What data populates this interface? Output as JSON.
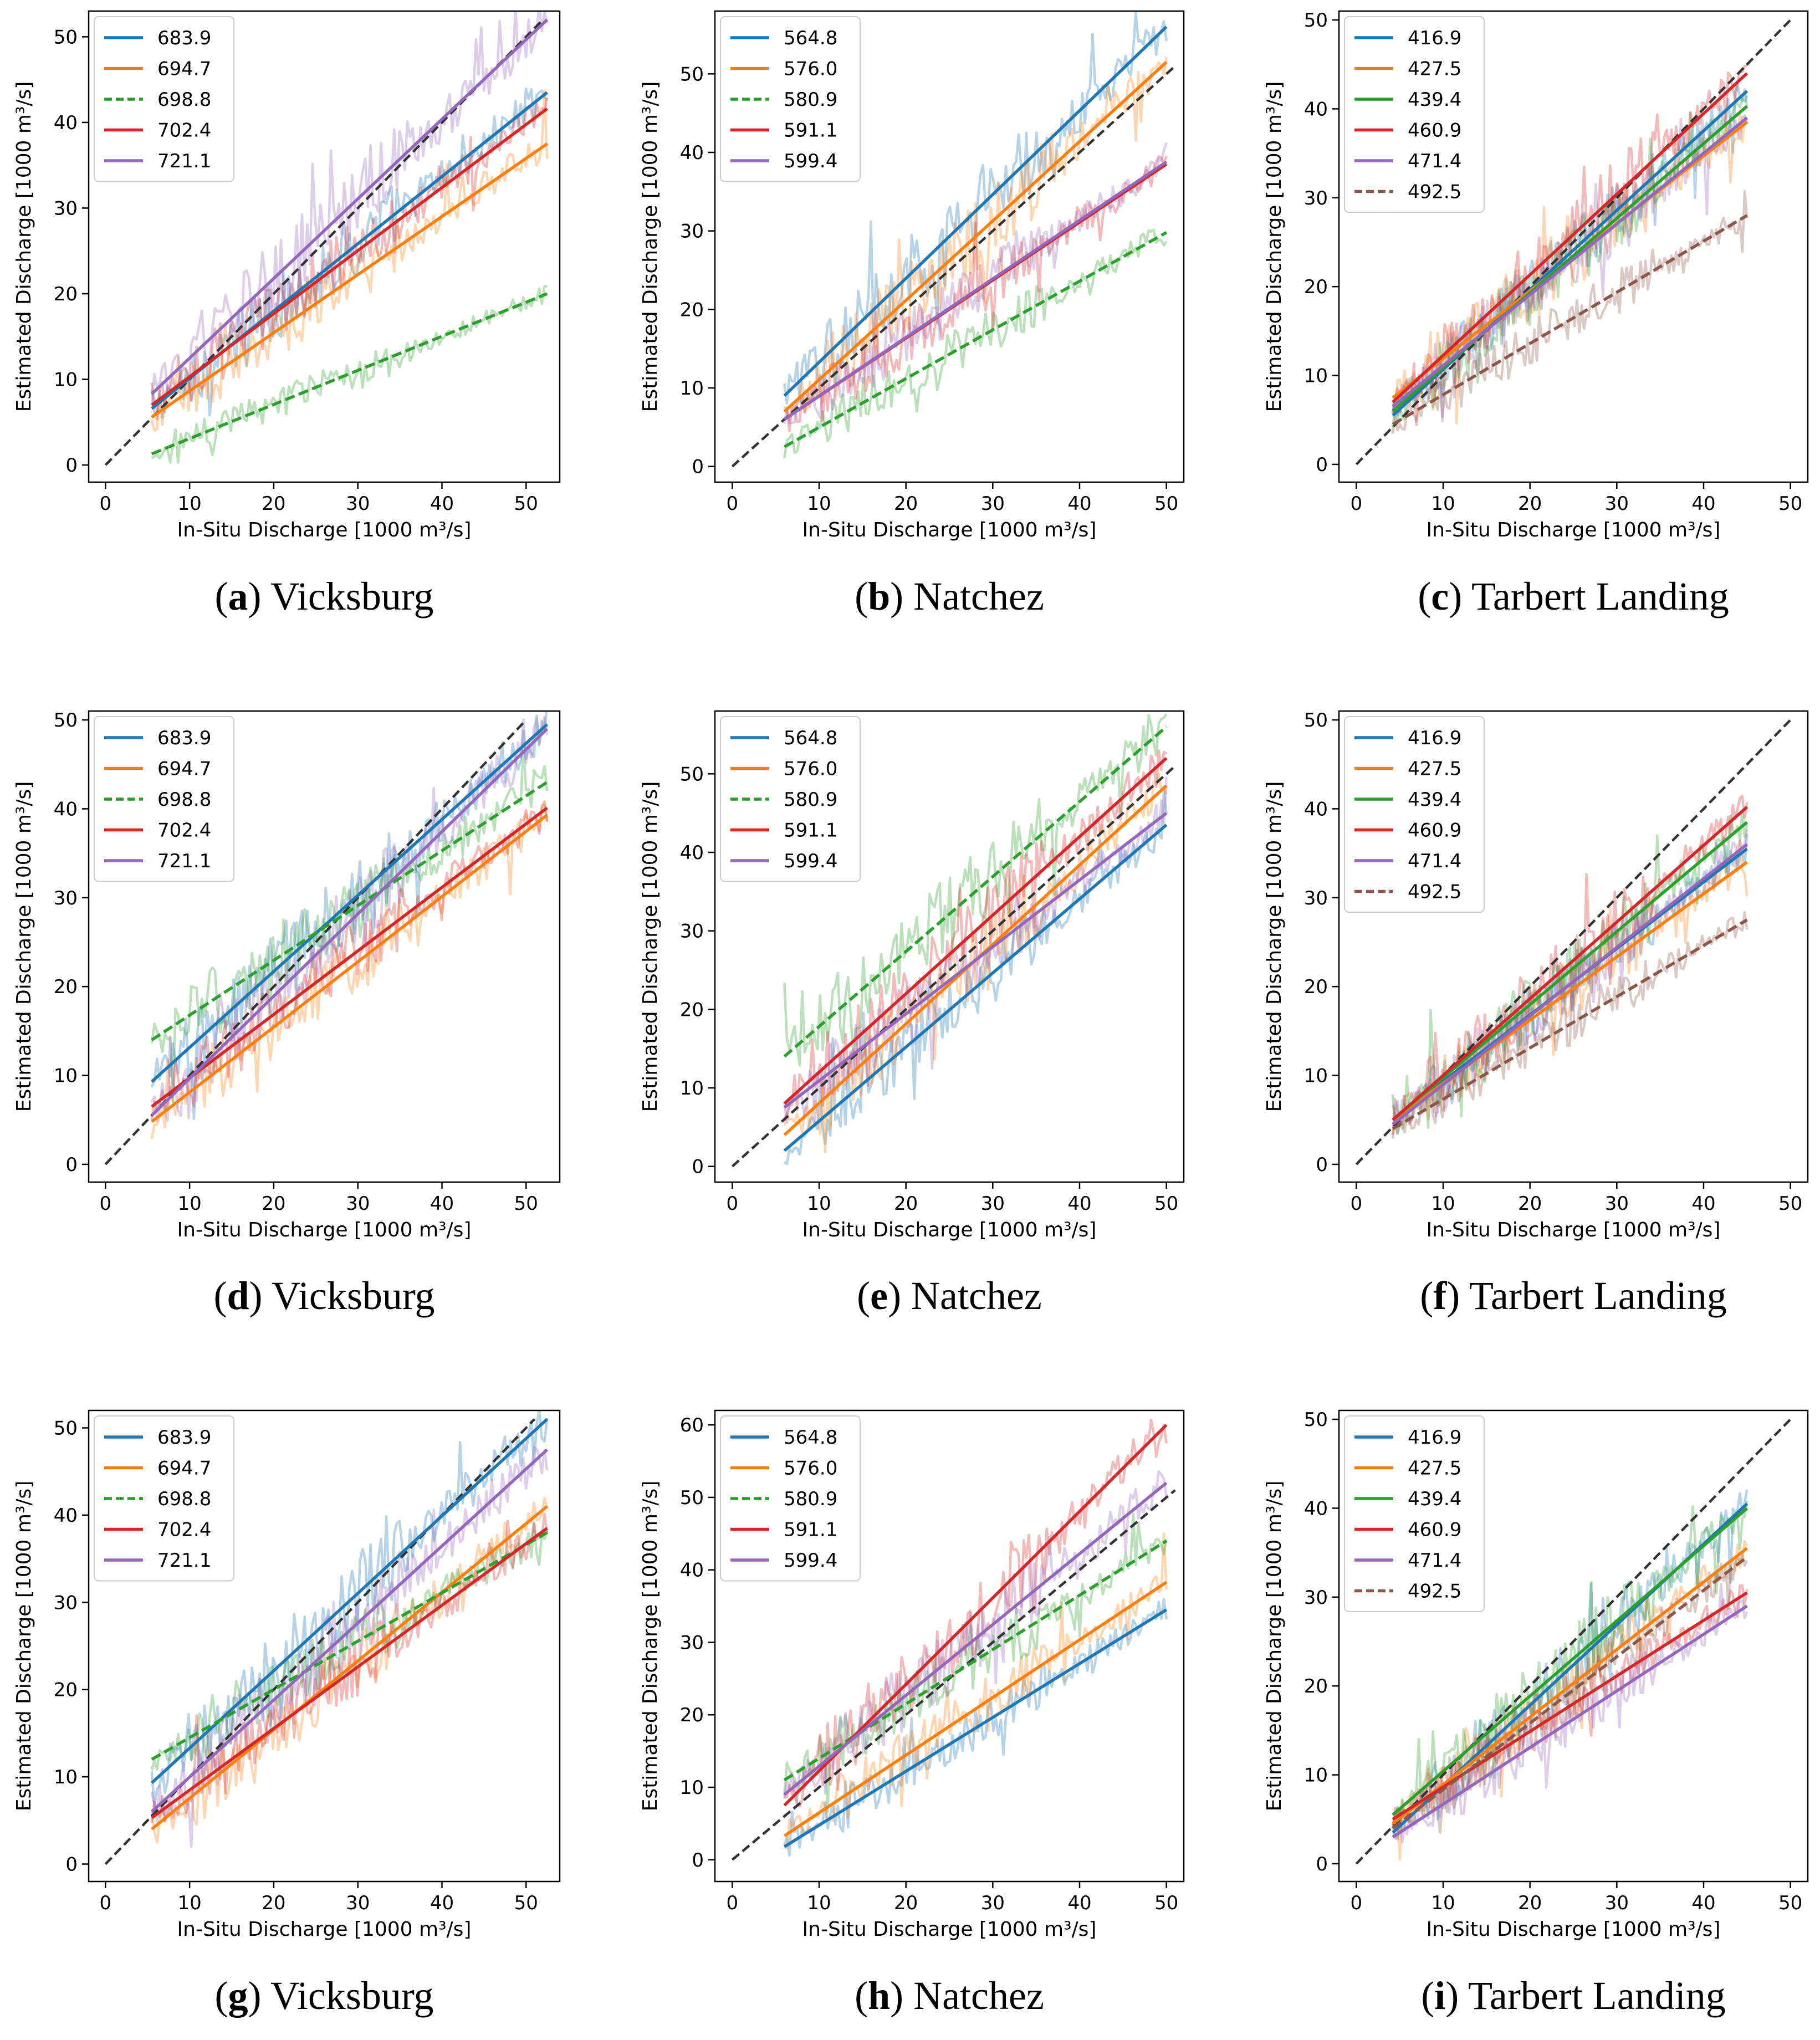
{
  "figure": {
    "xlabel": "In-Situ Discharge [1000 m³/s]",
    "ylabel": "Estimated Discharge [1000 m³/s]"
  },
  "colors": {
    "c0": "#1f77b4",
    "c1": "#ff7f0e",
    "c2": "#2ca02c",
    "c3": "#d62728",
    "c4": "#9467bd",
    "c5": "#8c564b",
    "identity": "#333333"
  },
  "chart_data": [
    {
      "panel": "a",
      "caption_letter": "a",
      "caption_station": "Vicksburg",
      "type": "line",
      "xlabel": "In-Situ Discharge [1000 m³/s]",
      "ylabel": "Estimated Discharge [1000 m³/s]",
      "xlim": [
        -2,
        54
      ],
      "ylim": [
        -2,
        53
      ],
      "xticks": [
        0,
        10,
        20,
        30,
        40,
        50
      ],
      "yticks": [
        0,
        10,
        20,
        30,
        40,
        50
      ],
      "xrange": [
        5.5,
        52.5
      ],
      "series": [
        {
          "name": "683.9",
          "color": "c0",
          "dashed": false,
          "fit": [
            [
              5.5,
              6.6
            ],
            [
              52.5,
              43.5
            ]
          ]
        },
        {
          "name": "694.7",
          "color": "c1",
          "dashed": false,
          "fit": [
            [
              5.5,
              5.6
            ],
            [
              52.5,
              37.5
            ]
          ]
        },
        {
          "name": "698.8",
          "color": "c2",
          "dashed": true,
          "fit": [
            [
              5.5,
              1.3
            ],
            [
              52.5,
              20.0
            ]
          ]
        },
        {
          "name": "702.4",
          "color": "c3",
          "dashed": false,
          "fit": [
            [
              5.5,
              7.0
            ],
            [
              52.5,
              41.6
            ]
          ]
        },
        {
          "name": "721.1",
          "color": "c4",
          "dashed": false,
          "fit": [
            [
              5.5,
              8.3
            ],
            [
              52.5,
              52.0
            ]
          ]
        }
      ]
    },
    {
      "panel": "b",
      "caption_letter": "b",
      "caption_station": "Natchez",
      "type": "line",
      "xlabel": "In-Situ Discharge [1000 m³/s]",
      "ylabel": "Estimated Discharge [1000 m³/s]",
      "xlim": [
        -2,
        52
      ],
      "ylim": [
        -2,
        58
      ],
      "xticks": [
        0,
        10,
        20,
        30,
        40,
        50
      ],
      "yticks": [
        0,
        10,
        20,
        30,
        40,
        50
      ],
      "xrange": [
        6,
        50
      ],
      "series": [
        {
          "name": "564.8",
          "color": "c0",
          "dashed": false,
          "fit": [
            [
              6,
              9.0
            ],
            [
              50,
              56.0
            ]
          ]
        },
        {
          "name": "576.0",
          "color": "c1",
          "dashed": false,
          "fit": [
            [
              6,
              7.0
            ],
            [
              50,
              51.5
            ]
          ]
        },
        {
          "name": "580.9",
          "color": "c2",
          "dashed": true,
          "fit": [
            [
              6,
              2.5
            ],
            [
              50,
              29.8
            ]
          ]
        },
        {
          "name": "591.1",
          "color": "c3",
          "dashed": false,
          "fit": [
            [
              6,
              6.0
            ],
            [
              50,
              38.5
            ]
          ]
        },
        {
          "name": "599.4",
          "color": "c4",
          "dashed": false,
          "fit": [
            [
              6,
              6.0
            ],
            [
              50,
              38.8
            ]
          ]
        }
      ]
    },
    {
      "panel": "c",
      "caption_letter": "c",
      "caption_station": "Tarbert Landing",
      "type": "line",
      "xlabel": "In-Situ Discharge [1000 m³/s]",
      "ylabel": "Estimated Discharge [1000 m³/s]",
      "xlim": [
        -2,
        52
      ],
      "ylim": [
        -2,
        51
      ],
      "xticks": [
        0,
        10,
        20,
        30,
        40,
        50
      ],
      "yticks": [
        0,
        10,
        20,
        30,
        40,
        50
      ],
      "xrange": [
        4.2,
        45
      ],
      "series": [
        {
          "name": "416.9",
          "color": "c0",
          "dashed": false,
          "fit": [
            [
              4.2,
              5.5
            ],
            [
              45,
              42.0
            ]
          ]
        },
        {
          "name": "427.5",
          "color": "c1",
          "dashed": false,
          "fit": [
            [
              4.2,
              7.5
            ],
            [
              45,
              38.5
            ]
          ]
        },
        {
          "name": "439.4",
          "color": "c2",
          "dashed": false,
          "fit": [
            [
              4.2,
              6.0
            ],
            [
              45,
              40.3
            ]
          ]
        },
        {
          "name": "460.9",
          "color": "c3",
          "dashed": false,
          "fit": [
            [
              4.2,
              7.0
            ],
            [
              45,
              44.0
            ]
          ]
        },
        {
          "name": "471.4",
          "color": "c4",
          "dashed": false,
          "fit": [
            [
              4.2,
              6.5
            ],
            [
              45,
              39.0
            ]
          ]
        },
        {
          "name": "492.5",
          "color": "c5",
          "dashed": true,
          "fit": [
            [
              4.2,
              4.5
            ],
            [
              45,
              28.0
            ]
          ]
        }
      ]
    },
    {
      "panel": "d",
      "caption_letter": "d",
      "caption_station": "Vicksburg",
      "type": "line",
      "xlabel": "In-Situ Discharge [1000 m³/s]",
      "ylabel": "Estimated Discharge [1000 m³/s]",
      "xlim": [
        -2,
        54
      ],
      "ylim": [
        -2,
        51
      ],
      "xticks": [
        0,
        10,
        20,
        30,
        40,
        50
      ],
      "yticks": [
        0,
        10,
        20,
        30,
        40,
        50
      ],
      "xrange": [
        5.5,
        52.5
      ],
      "series": [
        {
          "name": "683.9",
          "color": "c0",
          "dashed": false,
          "fit": [
            [
              5.5,
              9.3
            ],
            [
              52.5,
              49.5
            ]
          ]
        },
        {
          "name": "694.7",
          "color": "c1",
          "dashed": false,
          "fit": [
            [
              5.5,
              4.8
            ],
            [
              52.5,
              39.3
            ]
          ]
        },
        {
          "name": "698.8",
          "color": "c2",
          "dashed": true,
          "fit": [
            [
              5.5,
              14.0
            ],
            [
              52.5,
              43.0
            ]
          ]
        },
        {
          "name": "702.4",
          "color": "c3",
          "dashed": false,
          "fit": [
            [
              5.5,
              6.5
            ],
            [
              52.5,
              40.1
            ]
          ]
        },
        {
          "name": "721.1",
          "color": "c4",
          "dashed": false,
          "fit": [
            [
              5.5,
              5.5
            ],
            [
              52.5,
              49.0
            ]
          ]
        }
      ]
    },
    {
      "panel": "e",
      "caption_letter": "e",
      "caption_station": "Natchez",
      "type": "line",
      "xlabel": "In-Situ Discharge [1000 m³/s]",
      "ylabel": "Estimated Discharge [1000 m³/s]",
      "xlim": [
        -2,
        52
      ],
      "ylim": [
        -2,
        58
      ],
      "xticks": [
        0,
        10,
        20,
        30,
        40,
        50
      ],
      "yticks": [
        0,
        10,
        20,
        30,
        40,
        50
      ],
      "xrange": [
        6,
        50
      ],
      "series": [
        {
          "name": "564.8",
          "color": "c0",
          "dashed": false,
          "fit": [
            [
              6,
              2.0
            ],
            [
              50,
              43.5
            ]
          ]
        },
        {
          "name": "576.0",
          "color": "c1",
          "dashed": false,
          "fit": [
            [
              6,
              4.0
            ],
            [
              50,
              48.5
            ]
          ]
        },
        {
          "name": "580.9",
          "color": "c2",
          "dashed": true,
          "fit": [
            [
              6,
              14.0
            ],
            [
              50,
              56.0
            ]
          ]
        },
        {
          "name": "591.1",
          "color": "c3",
          "dashed": false,
          "fit": [
            [
              6,
              8.0
            ],
            [
              50,
              52.0
            ]
          ]
        },
        {
          "name": "599.4",
          "color": "c4",
          "dashed": false,
          "fit": [
            [
              6,
              7.5
            ],
            [
              50,
              45.0
            ]
          ]
        }
      ]
    },
    {
      "panel": "f",
      "caption_letter": "f",
      "caption_station": "Tarbert Landing",
      "type": "line",
      "xlabel": "In-Situ Discharge [1000 m³/s]",
      "ylabel": "Estimated Discharge [1000 m³/s]",
      "xlim": [
        -2,
        52
      ],
      "ylim": [
        -2,
        51
      ],
      "xticks": [
        0,
        10,
        20,
        30,
        40,
        50
      ],
      "yticks": [
        0,
        10,
        20,
        30,
        40,
        50
      ],
      "xrange": [
        4.2,
        45
      ],
      "series": [
        {
          "name": "416.9",
          "color": "c0",
          "dashed": false,
          "fit": [
            [
              4.2,
              5.0
            ],
            [
              45,
              35.5
            ]
          ]
        },
        {
          "name": "427.5",
          "color": "c1",
          "dashed": false,
          "fit": [
            [
              4.2,
              5.0
            ],
            [
              45,
              34.0
            ]
          ]
        },
        {
          "name": "439.4",
          "color": "c2",
          "dashed": false,
          "fit": [
            [
              4.2,
              5.0
            ],
            [
              45,
              38.5
            ]
          ]
        },
        {
          "name": "460.9",
          "color": "c3",
          "dashed": false,
          "fit": [
            [
              4.2,
              5.0
            ],
            [
              45,
              40.2
            ]
          ]
        },
        {
          "name": "471.4",
          "color": "c4",
          "dashed": false,
          "fit": [
            [
              4.2,
              4.5
            ],
            [
              45,
              36.0
            ]
          ]
        },
        {
          "name": "492.5",
          "color": "c5",
          "dashed": true,
          "fit": [
            [
              4.2,
              4.0
            ],
            [
              45,
              27.5
            ]
          ]
        }
      ]
    },
    {
      "panel": "g",
      "caption_letter": "g",
      "caption_station": "Vicksburg",
      "type": "line",
      "xlabel": "In-Situ Discharge [1000 m³/s]",
      "ylabel": "Estimated Discharge [1000 m³/s]",
      "xlim": [
        -2,
        54
      ],
      "ylim": [
        -2,
        52
      ],
      "xticks": [
        0,
        10,
        20,
        30,
        40,
        50
      ],
      "yticks": [
        0,
        10,
        20,
        30,
        40,
        50
      ],
      "xrange": [
        5.5,
        52.5
      ],
      "series": [
        {
          "name": "683.9",
          "color": "c0",
          "dashed": false,
          "fit": [
            [
              5.5,
              9.3
            ],
            [
              52.5,
              51.0
            ]
          ]
        },
        {
          "name": "694.7",
          "color": "c1",
          "dashed": false,
          "fit": [
            [
              5.5,
              4.0
            ],
            [
              52.5,
              41.0
            ]
          ]
        },
        {
          "name": "698.8",
          "color": "c2",
          "dashed": true,
          "fit": [
            [
              5.5,
              12.0
            ],
            [
              52.5,
              38.0
            ]
          ]
        },
        {
          "name": "702.4",
          "color": "c3",
          "dashed": false,
          "fit": [
            [
              5.5,
              5.3
            ],
            [
              52.5,
              38.5
            ]
          ]
        },
        {
          "name": "721.1",
          "color": "c4",
          "dashed": false,
          "fit": [
            [
              5.5,
              6.0
            ],
            [
              52.5,
              47.5
            ]
          ]
        }
      ]
    },
    {
      "panel": "h",
      "caption_letter": "h",
      "caption_station": "Natchez",
      "type": "line",
      "xlabel": "In-Situ Discharge [1000 m³/s]",
      "ylabel": "Estimated Discharge [1000 m³/s]",
      "xlim": [
        -2,
        52
      ],
      "ylim": [
        -3,
        62
      ],
      "xticks": [
        0,
        10,
        20,
        30,
        40,
        50
      ],
      "yticks": [
        0,
        10,
        20,
        30,
        40,
        50,
        60
      ],
      "xrange": [
        6,
        50
      ],
      "series": [
        {
          "name": "564.8",
          "color": "c0",
          "dashed": false,
          "fit": [
            [
              6,
              1.8
            ],
            [
              50,
              34.5
            ]
          ]
        },
        {
          "name": "576.0",
          "color": "c1",
          "dashed": false,
          "fit": [
            [
              6,
              3.3
            ],
            [
              50,
              38.3
            ]
          ]
        },
        {
          "name": "580.9",
          "color": "c2",
          "dashed": true,
          "fit": [
            [
              6,
              11.0
            ],
            [
              50,
              44.0
            ]
          ]
        },
        {
          "name": "591.1",
          "color": "c3",
          "dashed": false,
          "fit": [
            [
              6,
              7.5
            ],
            [
              50,
              60.0
            ]
          ]
        },
        {
          "name": "599.4",
          "color": "c4",
          "dashed": false,
          "fit": [
            [
              6,
              9.0
            ],
            [
              50,
              52.0
            ]
          ]
        }
      ]
    },
    {
      "panel": "i",
      "caption_letter": "i",
      "caption_station": "Tarbert Landing",
      "type": "line",
      "xlabel": "In-Situ Discharge [1000 m³/s]",
      "ylabel": "Estimated Discharge [1000 m³/s]",
      "xlim": [
        -2,
        52
      ],
      "ylim": [
        -2,
        51
      ],
      "xticks": [
        0,
        10,
        20,
        30,
        40,
        50
      ],
      "yticks": [
        0,
        10,
        20,
        30,
        40,
        50
      ],
      "xrange": [
        4.2,
        45
      ],
      "series": [
        {
          "name": "416.9",
          "color": "c0",
          "dashed": false,
          "fit": [
            [
              4.2,
              3.5
            ],
            [
              45,
              40.5
            ]
          ]
        },
        {
          "name": "427.5",
          "color": "c1",
          "dashed": false,
          "fit": [
            [
              4.2,
              4.5
            ],
            [
              45,
              35.5
            ]
          ]
        },
        {
          "name": "439.4",
          "color": "c2",
          "dashed": false,
          "fit": [
            [
              4.2,
              5.5
            ],
            [
              45,
              40.0
            ]
          ]
        },
        {
          "name": "460.9",
          "color": "c3",
          "dashed": false,
          "fit": [
            [
              4.2,
              5.0
            ],
            [
              45,
              30.5
            ]
          ]
        },
        {
          "name": "471.4",
          "color": "c4",
          "dashed": false,
          "fit": [
            [
              4.2,
              3.0
            ],
            [
              45,
              29.0
            ]
          ]
        },
        {
          "name": "492.5",
          "color": "c5",
          "dashed": true,
          "fit": [
            [
              4.2,
              4.0
            ],
            [
              45,
              34.5
            ]
          ]
        }
      ]
    }
  ]
}
